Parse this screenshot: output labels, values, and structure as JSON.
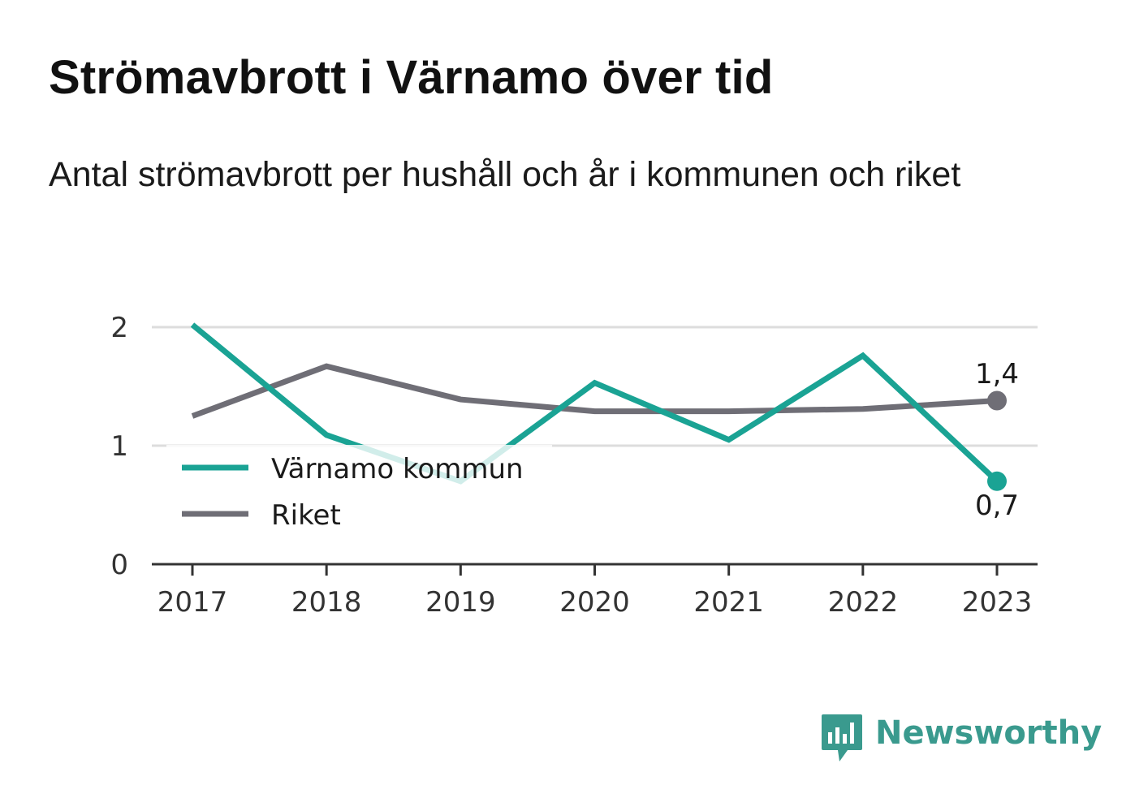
{
  "header": {
    "title": "Strömavbrott i Värnamo över tid",
    "subtitle": "Antal strömavbrott per hushåll och år i kommunen och riket"
  },
  "chart_data": {
    "type": "line",
    "x": [
      "2017",
      "2018",
      "2019",
      "2020",
      "2021",
      "2022",
      "2023"
    ],
    "series": [
      {
        "name": "Värnamo kommun",
        "color": "#1aa394",
        "values": [
          2.02,
          1.09,
          0.7,
          1.53,
          1.05,
          1.76,
          0.7
        ],
        "end_label": "0,7"
      },
      {
        "name": "Riket",
        "color": "#6f6e76",
        "values": [
          1.25,
          1.67,
          1.39,
          1.29,
          1.29,
          1.31,
          1.38
        ],
        "end_label": "1,4"
      }
    ],
    "y_ticks": [
      "0",
      "1",
      "2"
    ],
    "ylim": [
      0,
      2
    ],
    "grid": true,
    "legend": "bottom-left"
  },
  "branding": {
    "name": "Newsworthy",
    "color": "#3a9a8e",
    "icon": "newsworthy-logo-icon"
  }
}
